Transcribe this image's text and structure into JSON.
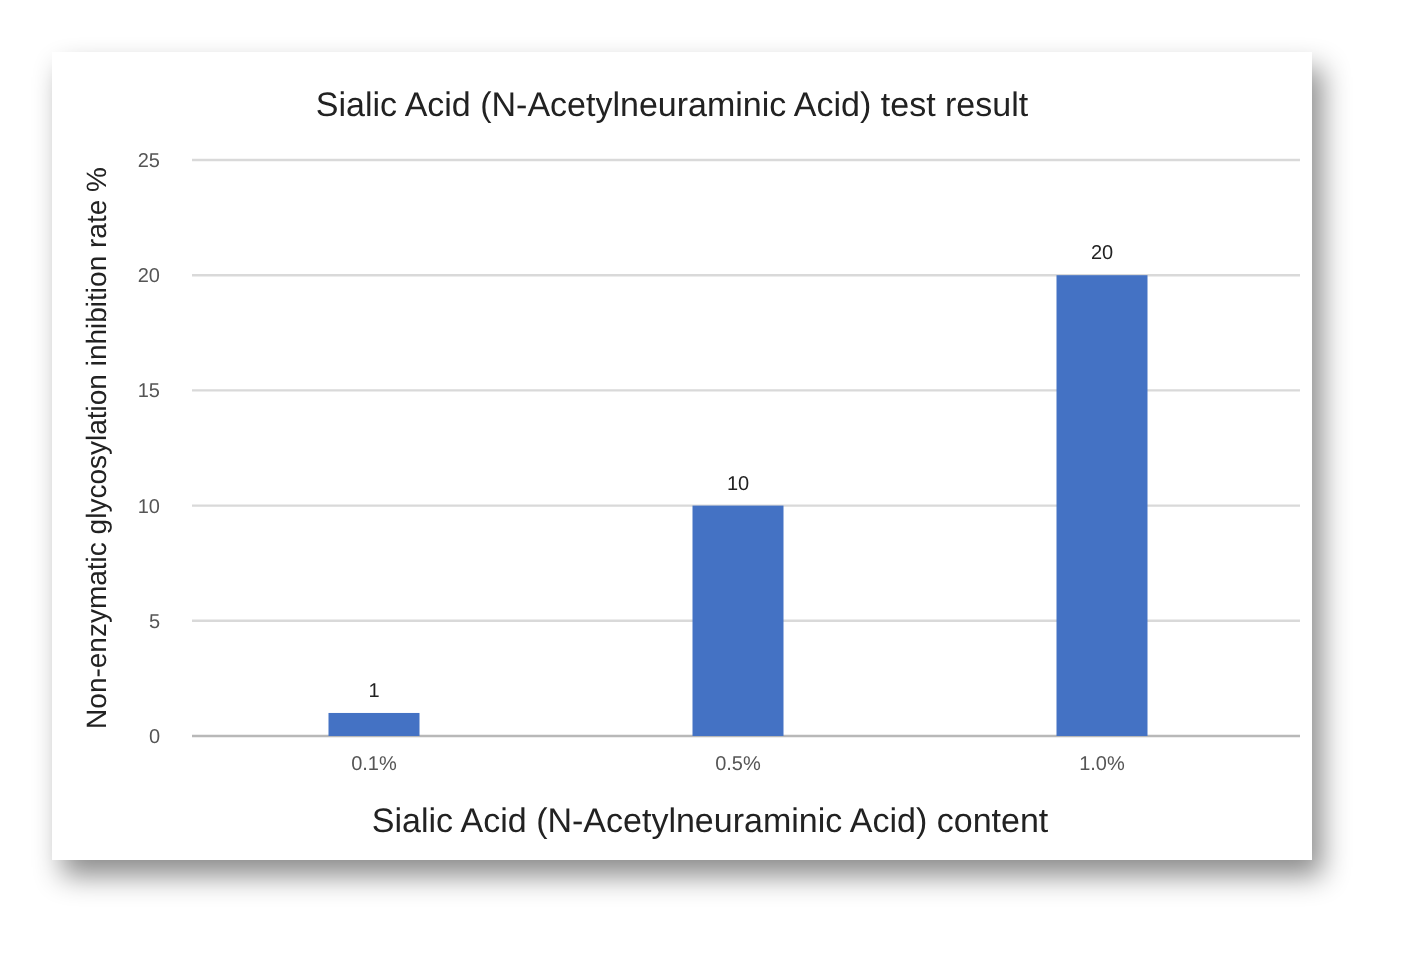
{
  "chart_data": {
    "type": "bar",
    "title": "Sialic Acid (N-Acetylneuraminic Acid) test result",
    "xlabel": "Sialic Acid (N-Acetylneuraminic Acid) content",
    "ylabel": "Non-enzymatic glycosylation inhibition rate %",
    "categories": [
      "0.1%",
      "0.5%",
      "1.0%"
    ],
    "values": [
      1,
      10,
      20
    ],
    "color": "#4472c4",
    "ylim": [
      0,
      25
    ],
    "yticks": [
      0,
      5,
      10,
      15,
      20,
      25
    ],
    "grid": "y",
    "data_labels": true
  }
}
